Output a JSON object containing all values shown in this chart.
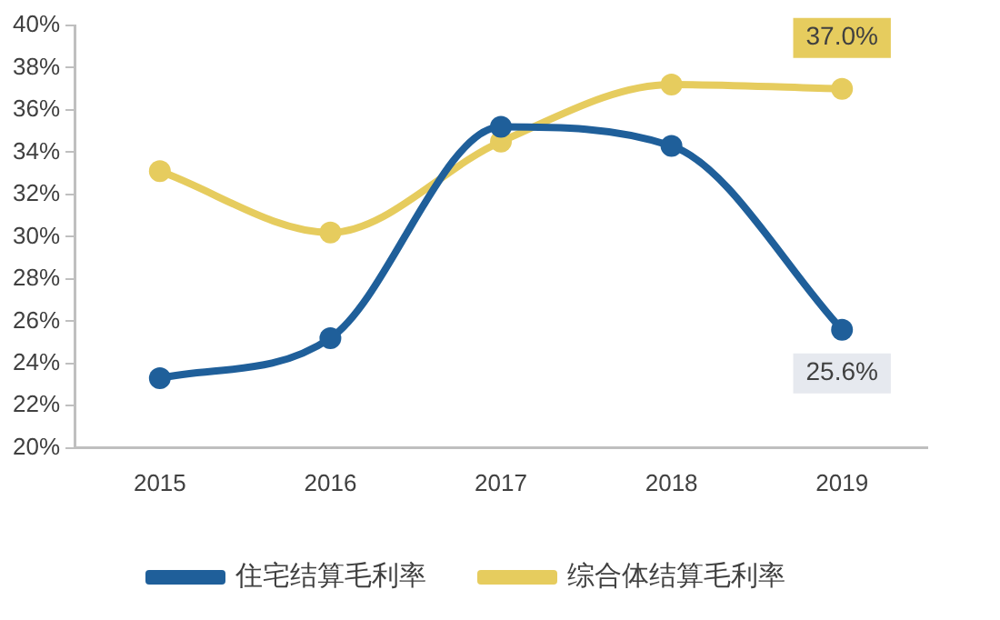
{
  "chart_data": {
    "type": "line",
    "categories": [
      "2015",
      "2016",
      "2017",
      "2018",
      "2019"
    ],
    "series": [
      {
        "name": "住宅结算毛利率",
        "color": "#1f5f9a",
        "values": [
          23.3,
          25.2,
          35.2,
          34.3,
          25.6
        ],
        "value_labels": [
          null,
          null,
          null,
          null,
          "25.6%"
        ]
      },
      {
        "name": "综合体结算毛利率",
        "color": "#e6cc5e",
        "values": [
          33.1,
          30.2,
          34.5,
          37.2,
          37.0
        ],
        "value_labels": [
          null,
          null,
          null,
          null,
          "37.0%"
        ]
      }
    ],
    "ylim": [
      20,
      40
    ],
    "yticks": [
      {
        "value": 20,
        "label": "20%"
      },
      {
        "value": 22,
        "label": "22%"
      },
      {
        "value": 24,
        "label": "24%"
      },
      {
        "value": 26,
        "label": "26%"
      },
      {
        "value": 28,
        "label": "28%"
      },
      {
        "value": 30,
        "label": "30%"
      },
      {
        "value": 32,
        "label": "32%"
      },
      {
        "value": 34,
        "label": "34%"
      },
      {
        "value": 36,
        "label": "36%"
      },
      {
        "value": 38,
        "label": "38%"
      },
      {
        "value": 40,
        "label": "40%"
      }
    ],
    "grid": false,
    "legend": "bottom",
    "marker": "circle",
    "line_style": "solid"
  }
}
